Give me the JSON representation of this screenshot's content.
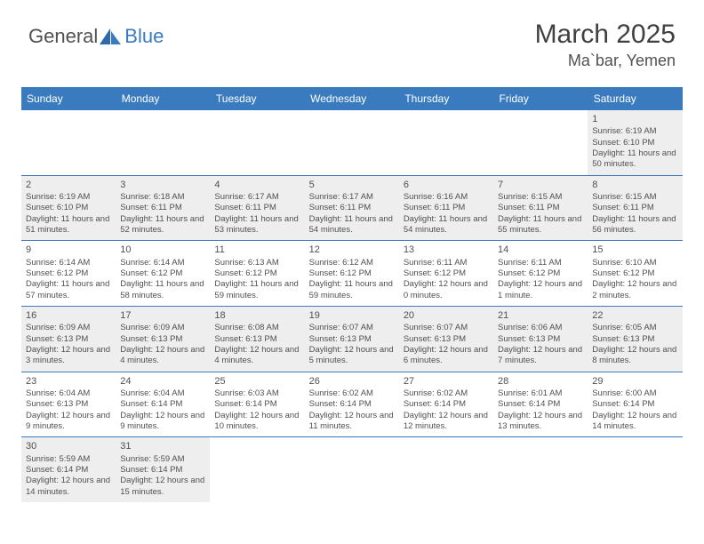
{
  "logo": {
    "general": "General",
    "blue": "Blue"
  },
  "header": {
    "month": "March 2025",
    "location": "Ma`bar, Yemen"
  },
  "weekdays": [
    "Sunday",
    "Monday",
    "Tuesday",
    "Wednesday",
    "Thursday",
    "Friday",
    "Saturday"
  ],
  "colors": {
    "header_bg": "#3a7bbf",
    "header_text": "#ffffff",
    "cell_border": "#3a7bbf",
    "gray_bg": "#eeeeee",
    "text": "#505050",
    "logo_gray": "#505050",
    "logo_blue": "#3a7bbf"
  },
  "grid": [
    [
      {
        "empty": true
      },
      {
        "empty": true
      },
      {
        "empty": true
      },
      {
        "empty": true
      },
      {
        "empty": true
      },
      {
        "empty": true
      },
      {
        "day": "1",
        "gray": true,
        "sunrise": "Sunrise: 6:19 AM",
        "sunset": "Sunset: 6:10 PM",
        "daylight": "Daylight: 11 hours and 50 minutes."
      }
    ],
    [
      {
        "day": "2",
        "gray": true,
        "sunrise": "Sunrise: 6:19 AM",
        "sunset": "Sunset: 6:10 PM",
        "daylight": "Daylight: 11 hours and 51 minutes."
      },
      {
        "day": "3",
        "gray": true,
        "sunrise": "Sunrise: 6:18 AM",
        "sunset": "Sunset: 6:11 PM",
        "daylight": "Daylight: 11 hours and 52 minutes."
      },
      {
        "day": "4",
        "gray": true,
        "sunrise": "Sunrise: 6:17 AM",
        "sunset": "Sunset: 6:11 PM",
        "daylight": "Daylight: 11 hours and 53 minutes."
      },
      {
        "day": "5",
        "gray": true,
        "sunrise": "Sunrise: 6:17 AM",
        "sunset": "Sunset: 6:11 PM",
        "daylight": "Daylight: 11 hours and 54 minutes."
      },
      {
        "day": "6",
        "gray": true,
        "sunrise": "Sunrise: 6:16 AM",
        "sunset": "Sunset: 6:11 PM",
        "daylight": "Daylight: 11 hours and 54 minutes."
      },
      {
        "day": "7",
        "gray": true,
        "sunrise": "Sunrise: 6:15 AM",
        "sunset": "Sunset: 6:11 PM",
        "daylight": "Daylight: 11 hours and 55 minutes."
      },
      {
        "day": "8",
        "gray": true,
        "sunrise": "Sunrise: 6:15 AM",
        "sunset": "Sunset: 6:11 PM",
        "daylight": "Daylight: 11 hours and 56 minutes."
      }
    ],
    [
      {
        "day": "9",
        "sunrise": "Sunrise: 6:14 AM",
        "sunset": "Sunset: 6:12 PM",
        "daylight": "Daylight: 11 hours and 57 minutes."
      },
      {
        "day": "10",
        "sunrise": "Sunrise: 6:14 AM",
        "sunset": "Sunset: 6:12 PM",
        "daylight": "Daylight: 11 hours and 58 minutes."
      },
      {
        "day": "11",
        "sunrise": "Sunrise: 6:13 AM",
        "sunset": "Sunset: 6:12 PM",
        "daylight": "Daylight: 11 hours and 59 minutes."
      },
      {
        "day": "12",
        "sunrise": "Sunrise: 6:12 AM",
        "sunset": "Sunset: 6:12 PM",
        "daylight": "Daylight: 11 hours and 59 minutes."
      },
      {
        "day": "13",
        "sunrise": "Sunrise: 6:11 AM",
        "sunset": "Sunset: 6:12 PM",
        "daylight": "Daylight: 12 hours and 0 minutes."
      },
      {
        "day": "14",
        "sunrise": "Sunrise: 6:11 AM",
        "sunset": "Sunset: 6:12 PM",
        "daylight": "Daylight: 12 hours and 1 minute."
      },
      {
        "day": "15",
        "sunrise": "Sunrise: 6:10 AM",
        "sunset": "Sunset: 6:12 PM",
        "daylight": "Daylight: 12 hours and 2 minutes."
      }
    ],
    [
      {
        "day": "16",
        "gray": true,
        "sunrise": "Sunrise: 6:09 AM",
        "sunset": "Sunset: 6:13 PM",
        "daylight": "Daylight: 12 hours and 3 minutes."
      },
      {
        "day": "17",
        "gray": true,
        "sunrise": "Sunrise: 6:09 AM",
        "sunset": "Sunset: 6:13 PM",
        "daylight": "Daylight: 12 hours and 4 minutes."
      },
      {
        "day": "18",
        "gray": true,
        "sunrise": "Sunrise: 6:08 AM",
        "sunset": "Sunset: 6:13 PM",
        "daylight": "Daylight: 12 hours and 4 minutes."
      },
      {
        "day": "19",
        "gray": true,
        "sunrise": "Sunrise: 6:07 AM",
        "sunset": "Sunset: 6:13 PM",
        "daylight": "Daylight: 12 hours and 5 minutes."
      },
      {
        "day": "20",
        "gray": true,
        "sunrise": "Sunrise: 6:07 AM",
        "sunset": "Sunset: 6:13 PM",
        "daylight": "Daylight: 12 hours and 6 minutes."
      },
      {
        "day": "21",
        "gray": true,
        "sunrise": "Sunrise: 6:06 AM",
        "sunset": "Sunset: 6:13 PM",
        "daylight": "Daylight: 12 hours and 7 minutes."
      },
      {
        "day": "22",
        "gray": true,
        "sunrise": "Sunrise: 6:05 AM",
        "sunset": "Sunset: 6:13 PM",
        "daylight": "Daylight: 12 hours and 8 minutes."
      }
    ],
    [
      {
        "day": "23",
        "sunrise": "Sunrise: 6:04 AM",
        "sunset": "Sunset: 6:13 PM",
        "daylight": "Daylight: 12 hours and 9 minutes."
      },
      {
        "day": "24",
        "sunrise": "Sunrise: 6:04 AM",
        "sunset": "Sunset: 6:14 PM",
        "daylight": "Daylight: 12 hours and 9 minutes."
      },
      {
        "day": "25",
        "sunrise": "Sunrise: 6:03 AM",
        "sunset": "Sunset: 6:14 PM",
        "daylight": "Daylight: 12 hours and 10 minutes."
      },
      {
        "day": "26",
        "sunrise": "Sunrise: 6:02 AM",
        "sunset": "Sunset: 6:14 PM",
        "daylight": "Daylight: 12 hours and 11 minutes."
      },
      {
        "day": "27",
        "sunrise": "Sunrise: 6:02 AM",
        "sunset": "Sunset: 6:14 PM",
        "daylight": "Daylight: 12 hours and 12 minutes."
      },
      {
        "day": "28",
        "sunrise": "Sunrise: 6:01 AM",
        "sunset": "Sunset: 6:14 PM",
        "daylight": "Daylight: 12 hours and 13 minutes."
      },
      {
        "day": "29",
        "sunrise": "Sunrise: 6:00 AM",
        "sunset": "Sunset: 6:14 PM",
        "daylight": "Daylight: 12 hours and 14 minutes."
      }
    ],
    [
      {
        "day": "30",
        "gray": true,
        "sunrise": "Sunrise: 5:59 AM",
        "sunset": "Sunset: 6:14 PM",
        "daylight": "Daylight: 12 hours and 14 minutes."
      },
      {
        "day": "31",
        "gray": true,
        "sunrise": "Sunrise: 5:59 AM",
        "sunset": "Sunset: 6:14 PM",
        "daylight": "Daylight: 12 hours and 15 minutes."
      },
      {
        "empty": true
      },
      {
        "empty": true
      },
      {
        "empty": true
      },
      {
        "empty": true
      },
      {
        "empty": true
      }
    ]
  ]
}
